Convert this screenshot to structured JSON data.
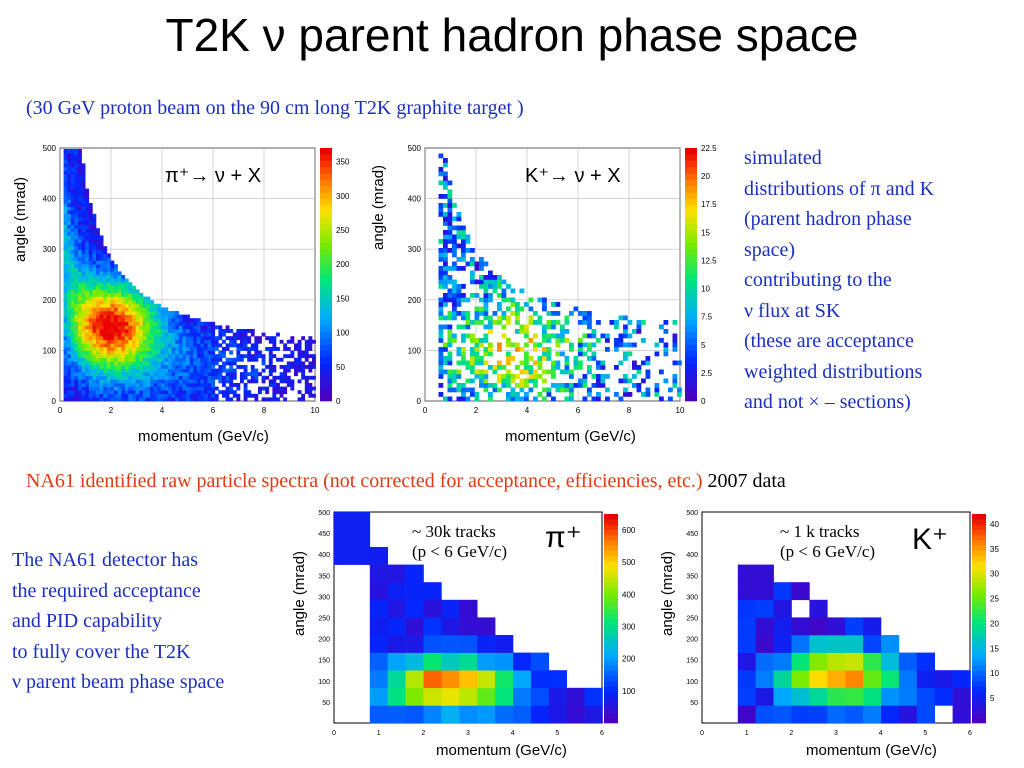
{
  "title": "T2K ν parent hadron phase space",
  "subtitle": "(30 GeV proton beam on the 90 cm long T2K graphite target )",
  "top_plots": [
    {
      "label": "π⁺→ ν + X",
      "ylabel": "angle (mrad)",
      "xlabel": "momentum (GeV/c)"
    },
    {
      "label": "K⁺→ ν + X",
      "ylabel": "angle (mrad)",
      "xlabel": "momentum (GeV/c)"
    }
  ],
  "side_note_lines": [
    "simulated",
    "distributions of π and K",
    "(parent hadron phase",
    "space)",
    "contributing to the",
    "ν flux at SK",
    "(these are acceptance",
    "weighted distributions",
    "and not × – sections)"
  ],
  "na61": {
    "text": "NA61 identified raw particle spectra (not corrected for acceptance, efficiencies, etc.)",
    "year": "2007 data"
  },
  "left_note_lines": [
    "The NA61 detector has",
    "the required acceptance",
    "and PID capability",
    "to fully cover the T2K",
    "ν parent beam phase space"
  ],
  "bottom_plots": [
    {
      "particle": "π⁺",
      "tracks": "~ 30k tracks",
      "cut": "(p < 6 GeV/c)",
      "ylabel": "angle (mrad)",
      "xlabel": "momentum (GeV/c)"
    },
    {
      "particle": "K⁺",
      "tracks": "~ 1 k tracks",
      "cut": "(p < 6 GeV/c)",
      "ylabel": "angle (mrad)",
      "xlabel": "momentum (GeV/c)"
    }
  ],
  "chart_data": [
    {
      "type": "heatmap",
      "title": "π⁺→ ν + X",
      "xlabel": "momentum (GeV/c)",
      "ylabel": "angle (mrad)",
      "xlim": [
        0,
        10
      ],
      "ylim": [
        0,
        500
      ],
      "xticks": [
        "0",
        "2",
        "4",
        "6",
        "8",
        "10"
      ],
      "yticks": [
        "0",
        "100",
        "200",
        "300",
        "400",
        "500"
      ],
      "zticks": [
        "0",
        "50",
        "100",
        "150",
        "200",
        "250",
        "300",
        "350"
      ],
      "zmax": 370
    },
    {
      "type": "heatmap",
      "title": "K⁺→ ν + X",
      "xlabel": "momentum (GeV/c)",
      "ylabel": "angle (mrad)",
      "xlim": [
        0,
        10
      ],
      "ylim": [
        0,
        500
      ],
      "xticks": [
        "0",
        "2",
        "4",
        "6",
        "8",
        "10"
      ],
      "yticks": [
        "0",
        "100",
        "200",
        "300",
        "400",
        "500"
      ],
      "zticks": [
        "0",
        "2.5",
        "5",
        "7.5",
        "10",
        "12.5",
        "15",
        "17.5",
        "20",
        "22.5"
      ],
      "zmax": 22.5
    },
    {
      "type": "heatmap",
      "title": "π⁺",
      "xlabel": "momentum (GeV/c)",
      "ylabel": "angle (mrad)",
      "xlim": [
        0,
        6
      ],
      "ylim": [
        0,
        500
      ],
      "xticks": [
        "0",
        "1",
        "2",
        "3",
        "4",
        "5",
        "6"
      ],
      "yticks": [
        "50",
        "100",
        "150",
        "200",
        "250",
        "300",
        "350",
        "400",
        "450",
        "500"
      ],
      "zticks": [
        "100",
        "200",
        "300",
        "400",
        "500",
        "600"
      ],
      "zmax": 650
    },
    {
      "type": "heatmap",
      "title": "K⁺",
      "xlabel": "momentum (GeV/c)",
      "ylabel": "angle (mrad)",
      "xlim": [
        0,
        6
      ],
      "ylim": [
        0,
        500
      ],
      "xticks": [
        "0",
        "1",
        "2",
        "3",
        "4",
        "5",
        "6"
      ],
      "yticks": [
        "50",
        "100",
        "150",
        "200",
        "250",
        "300",
        "350",
        "400",
        "450",
        "500"
      ],
      "zticks": [
        "5",
        "10",
        "15",
        "20",
        "25",
        "30",
        "35",
        "40"
      ],
      "zmax": 42
    }
  ]
}
